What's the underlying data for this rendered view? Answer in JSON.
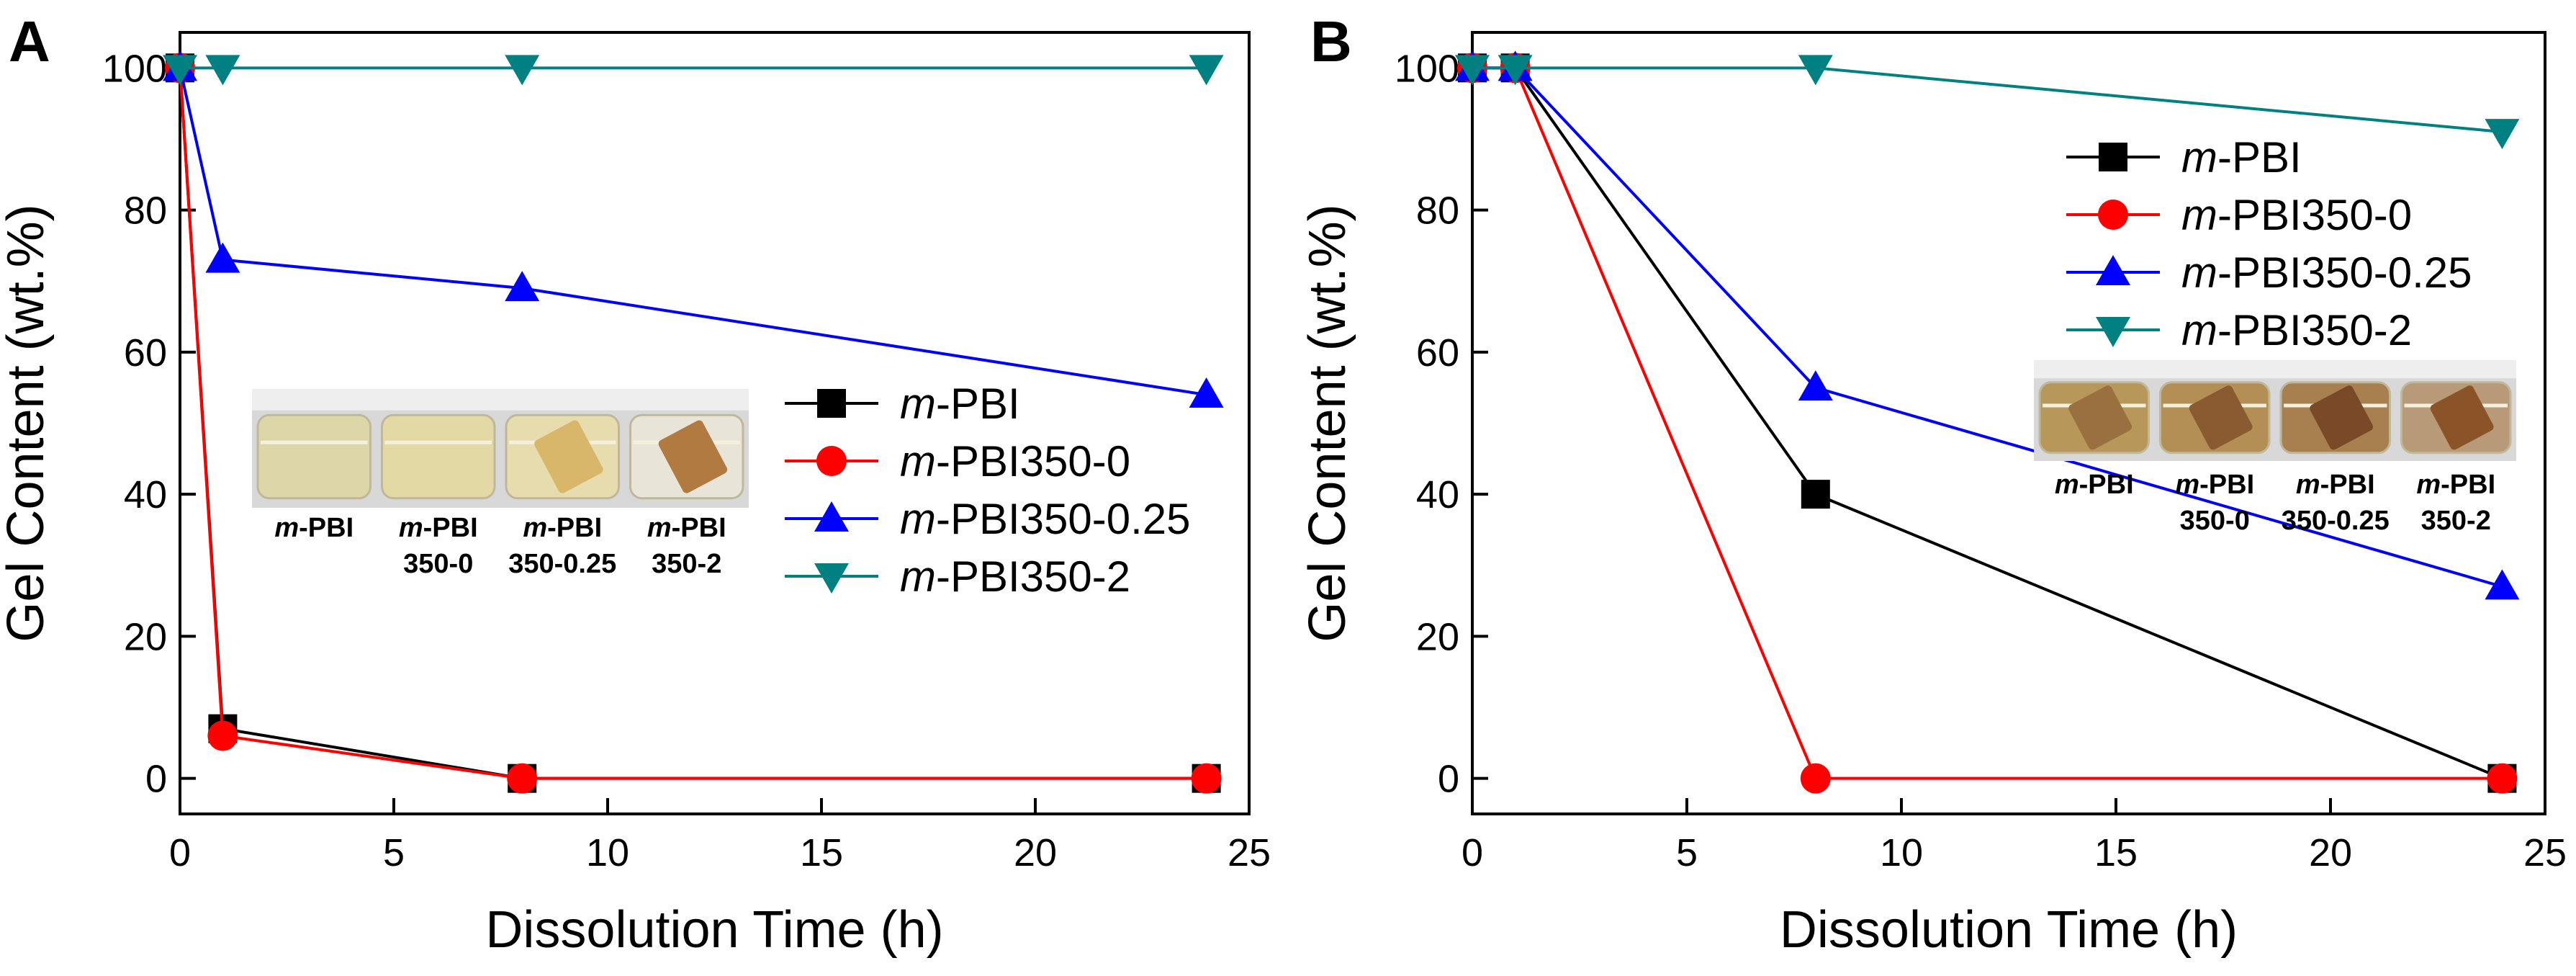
{
  "figure": {
    "panels": [
      {
        "label": "A",
        "inset": {
          "samples": [
            {
              "line1": "m-PBI",
              "line2": ""
            },
            {
              "line1": "m-PBI",
              "line2": "350-0"
            },
            {
              "line1": "m-PBI",
              "line2": "350-0.25"
            },
            {
              "line1": "m-PBI",
              "line2": "350-2"
            }
          ],
          "vial_colors": [
            "#ddd6a8",
            "#e2d9a4",
            "#e6dcae",
            "#e8e4d8"
          ],
          "film_colors": [
            "",
            "",
            "#d8b66a",
            "#b07a40"
          ]
        }
      },
      {
        "label": "B",
        "inset": {
          "samples": [
            {
              "line1": "m-PBI",
              "line2": ""
            },
            {
              "line1": "m-PBI",
              "line2": "350-0"
            },
            {
              "line1": "m-PBI",
              "line2": "350-0.25"
            },
            {
              "line1": "m-PBI",
              "line2": "350-2"
            }
          ],
          "vial_colors": [
            "#b8975a",
            "#b48f55",
            "#a88050",
            "#b89a78"
          ],
          "film_colors": [
            "#9a7040",
            "#8a5a30",
            "#7a4a28",
            "#8a5428"
          ]
        }
      }
    ]
  },
  "styles": {
    "series_colors": [
      "#000000",
      "#ff0000",
      "#0000ff",
      "#008080"
    ],
    "markers": [
      "square",
      "circle",
      "triangle-up",
      "triangle-down"
    ]
  },
  "chart_data": [
    {
      "type": "line",
      "panel": "A",
      "title": "",
      "xlabel": "Dissolution Time (h)",
      "ylabel": "Gel Content (wt.%)",
      "xlim": [
        0,
        25
      ],
      "ylim": [
        -5,
        105
      ],
      "xticks": [
        0,
        5,
        10,
        15,
        20,
        25
      ],
      "yticks": [
        0,
        20,
        40,
        60,
        80,
        100
      ],
      "legend": "center-right",
      "series": [
        {
          "prefix": "m",
          "name": "-PBI",
          "x": [
            0,
            1,
            8,
            24
          ],
          "y": [
            100,
            7,
            0,
            0
          ]
        },
        {
          "prefix": "m",
          "name": "-PBI350-0",
          "x": [
            0,
            1,
            8,
            24
          ],
          "y": [
            100,
            6,
            0,
            0
          ]
        },
        {
          "prefix": "m",
          "name": "-PBI350-0.25",
          "x": [
            0,
            1,
            8,
            24
          ],
          "y": [
            100,
            73,
            69,
            54
          ]
        },
        {
          "prefix": "m",
          "name": "-PBI350-2",
          "x": [
            0,
            1,
            8,
            24
          ],
          "y": [
            100,
            100,
            100,
            100
          ]
        }
      ]
    },
    {
      "type": "line",
      "panel": "B",
      "title": "",
      "xlabel": "Dissolution Time (h)",
      "ylabel": "Gel Content (wt.%)",
      "xlim": [
        0,
        25
      ],
      "ylim": [
        -5,
        105
      ],
      "xticks": [
        0,
        5,
        10,
        15,
        20,
        25
      ],
      "yticks": [
        0,
        20,
        40,
        60,
        80,
        100
      ],
      "legend": "top-right",
      "series": [
        {
          "prefix": "m",
          "name": "-PBI",
          "x": [
            0,
            1,
            8,
            24
          ],
          "y": [
            100,
            100,
            40,
            0
          ]
        },
        {
          "prefix": "m",
          "name": "-PBI350-0",
          "x": [
            0,
            1,
            8,
            24
          ],
          "y": [
            100,
            100,
            0,
            0
          ]
        },
        {
          "prefix": "m",
          "name": "-PBI350-0.25",
          "x": [
            0,
            1,
            8,
            24
          ],
          "y": [
            100,
            100,
            55,
            27
          ]
        },
        {
          "prefix": "m",
          "name": "-PBI350-2",
          "x": [
            0,
            1,
            8,
            24
          ],
          "y": [
            100,
            100,
            100,
            91
          ]
        }
      ]
    }
  ]
}
